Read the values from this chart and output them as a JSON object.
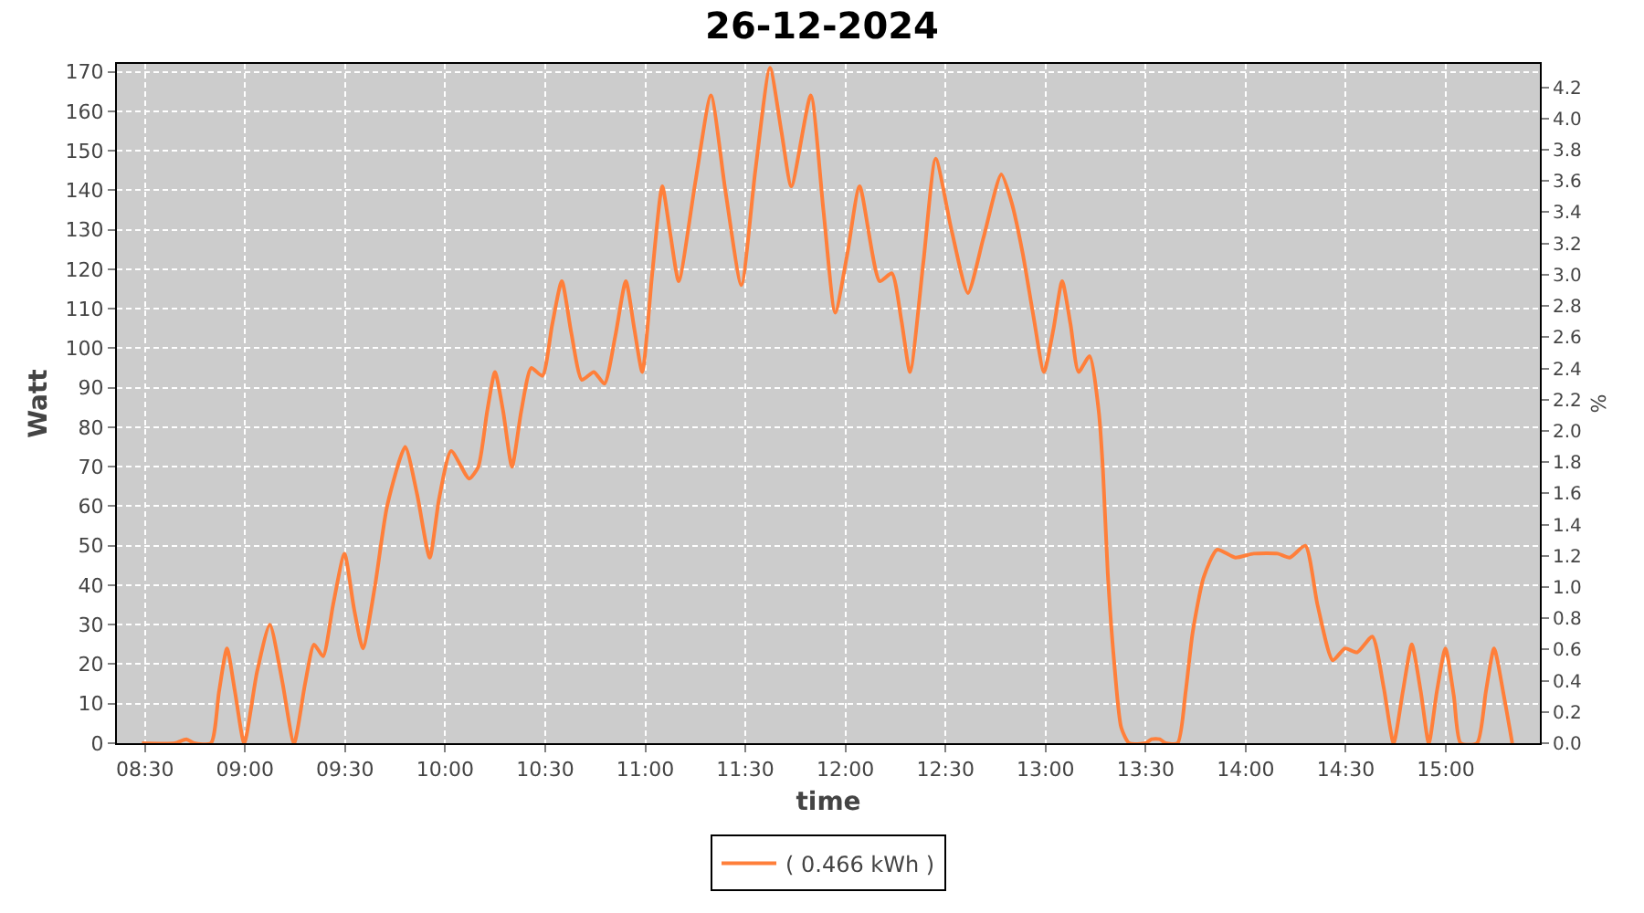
{
  "chart_data": {
    "type": "line",
    "title": "26-12-2024",
    "xlabel": "time",
    "ylabel": "Watt",
    "y2label": "%",
    "x": [
      8.485,
      8.65,
      8.707,
      8.746,
      8.83,
      8.87,
      8.91,
      8.95,
      8.996,
      9.06,
      9.124,
      9.185,
      9.245,
      9.3,
      9.345,
      9.39,
      9.44,
      9.497,
      9.545,
      9.589,
      9.65,
      9.71,
      9.8,
      9.86,
      9.923,
      9.97,
      10.03,
      10.12,
      10.166,
      10.21,
      10.249,
      10.29,
      10.334,
      10.38,
      10.43,
      10.486,
      10.535,
      10.583,
      10.63,
      10.683,
      10.743,
      10.796,
      10.85,
      10.903,
      10.945,
      10.985,
      11.035,
      11.085,
      11.125,
      11.167,
      11.25,
      11.328,
      11.4,
      11.48,
      11.55,
      11.623,
      11.68,
      11.73,
      11.827,
      11.89,
      11.949,
      12.01,
      12.071,
      12.171,
      12.232,
      12.28,
      12.323,
      12.39,
      12.451,
      12.53,
      12.612,
      12.69,
      12.779,
      12.83,
      12.886,
      12.94,
      12.992,
      13.04,
      13.083,
      13.125,
      13.165,
      13.22,
      13.266,
      13.287,
      13.311,
      13.342,
      13.378,
      13.418,
      13.5,
      13.53,
      13.57,
      13.6,
      13.66,
      13.7,
      13.735,
      13.79,
      13.857,
      13.948,
      14.04,
      14.16,
      14.22,
      14.298,
      14.359,
      14.435,
      14.496,
      14.557,
      14.633,
      14.69,
      14.739,
      14.785,
      14.83,
      14.875,
      14.915,
      14.955,
      14.998,
      15.04,
      15.074,
      15.156,
      15.2,
      15.241,
      15.29,
      15.332
    ],
    "series": [
      {
        "name": "( 0.466 kWh )",
        "color": "#ff7f3a",
        "values": [
          0,
          0,
          1,
          0,
          0,
          13,
          24,
          13,
          0,
          18,
          30,
          16,
          0,
          15,
          25,
          22,
          35,
          48,
          34,
          24,
          40,
          60,
          75,
          63,
          47,
          62,
          74,
          67,
          70,
          84,
          94,
          84,
          70,
          84,
          95,
          93,
          106,
          117,
          104,
          92,
          94,
          91,
          103,
          117,
          105,
          94,
          119,
          141,
          129,
          117,
          142,
          164,
          140,
          116,
          145,
          171,
          155,
          141,
          164,
          135,
          109,
          124,
          141,
          117,
          119,
          107,
          94,
          122,
          148,
          130,
          114,
          128,
          144,
          137,
          124,
          108,
          94,
          105,
          117,
          106,
          94,
          98,
          84,
          69,
          43,
          21,
          4,
          0,
          0,
          1,
          1,
          0,
          0,
          13,
          28,
          42,
          49,
          47,
          48,
          48,
          47,
          50,
          35,
          21,
          24,
          23,
          27,
          14,
          0,
          13,
          25,
          13,
          0,
          13,
          24,
          12,
          0,
          0,
          13,
          24,
          12,
          0
        ]
      }
    ],
    "xlim": [
      8.36,
      15.47
    ],
    "xticks": [
      {
        "value": 8.5,
        "label": "08:30"
      },
      {
        "value": 9,
        "label": "09:00"
      },
      {
        "value": 9.5,
        "label": "09:30"
      },
      {
        "value": 10,
        "label": "10:00"
      },
      {
        "value": 10.5,
        "label": "10:30"
      },
      {
        "value": 11,
        "label": "11:00"
      },
      {
        "value": 11.5,
        "label": "11:30"
      },
      {
        "value": 12,
        "label": "12:00"
      },
      {
        "value": 12.5,
        "label": "12:30"
      },
      {
        "value": 13,
        "label": "13:00"
      },
      {
        "value": 13.5,
        "label": "13:30"
      },
      {
        "value": 14,
        "label": "14:00"
      },
      {
        "value": 14.5,
        "label": "14:30"
      },
      {
        "value": 15,
        "label": "15:00"
      }
    ],
    "ylim": [
      0,
      172
    ],
    "yticks": [
      0,
      10,
      20,
      30,
      40,
      50,
      60,
      70,
      80,
      90,
      100,
      110,
      120,
      130,
      140,
      150,
      160,
      170
    ],
    "y2lim": [
      0,
      4.35
    ],
    "y2ticks": [
      {
        "value": 0,
        "label": "0.0"
      },
      0.2,
      0.4,
      0.6,
      0.8,
      {
        "value": 1,
        "label": "1.0"
      },
      1.2,
      1.4,
      1.6,
      1.8,
      {
        "value": 2,
        "label": "2.0"
      },
      2.2,
      2.4,
      2.6,
      2.8,
      {
        "value": 3,
        "label": "3.0"
      },
      3.2,
      3.4,
      3.6,
      3.8,
      {
        "value": 4,
        "label": "4.0"
      },
      4.2
    ],
    "grid": true,
    "legend": "bottom"
  }
}
